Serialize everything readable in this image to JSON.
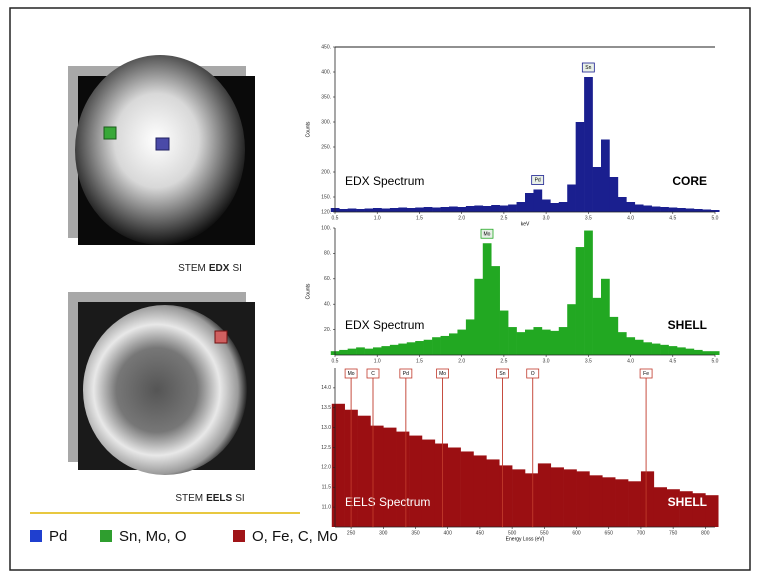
{
  "captions": [
    [
      "STEM",
      "EDX",
      "SI"
    ],
    [
      "STEM",
      "EELS",
      "SI"
    ]
  ],
  "legend": [
    {
      "label": "Pd",
      "color": "#1f3fcf"
    },
    {
      "label": "Sn, Mo, O",
      "color": "#2f9e2f"
    },
    {
      "label": "O, Fe, C, Mo",
      "color": "#a01418"
    }
  ],
  "chart_data": [
    {
      "type": "area",
      "title": "EDX Spectrum",
      "region": "CORE",
      "label_color": "#000000",
      "y_label": "Counts",
      "x_label": "keV",
      "color": "#1a1f8f",
      "marker_color": "#1a1f8f",
      "x": [
        0.5,
        0.6,
        0.7,
        0.8,
        0.9,
        1.0,
        1.1,
        1.2,
        1.3,
        1.4,
        1.5,
        1.6,
        1.7,
        1.8,
        1.9,
        2.0,
        2.1,
        2.2,
        2.3,
        2.4,
        2.5,
        2.6,
        2.7,
        2.8,
        2.9,
        3.0,
        3.1,
        3.2,
        3.3,
        3.4,
        3.5,
        3.6,
        3.7,
        3.8,
        3.9,
        4.0,
        4.1,
        4.2,
        4.3,
        4.4,
        4.5,
        4.6,
        4.7,
        4.8,
        4.9,
        5.0
      ],
      "values": [
        128,
        126,
        127,
        126,
        127,
        128,
        127,
        128,
        129,
        128,
        129,
        130,
        129,
        130,
        131,
        130,
        132,
        133,
        132,
        134,
        133,
        135,
        140,
        158,
        165,
        145,
        138,
        140,
        175,
        300,
        390,
        210,
        265,
        190,
        150,
        140,
        135,
        133,
        131,
        130,
        129,
        128,
        127,
        126,
        125,
        124
      ],
      "peaks": [
        {
          "label": "Sn",
          "x": 3.5
        },
        {
          "label": "Pd",
          "x": 2.9
        }
      ],
      "xlim": [
        0.5,
        5.0
      ],
      "xticks": [
        0.5,
        {
          "value": 1,
          "label": "1.0"
        },
        1.5,
        {
          "value": 2,
          "label": "2.0"
        },
        2.5,
        {
          "value": 3,
          "label": "3.0"
        },
        3.5,
        {
          "value": 4,
          "label": "4.0"
        },
        4.5,
        {
          "value": 5,
          "label": "5.0"
        }
      ],
      "ylim": [
        120,
        450
      ],
      "yticks": [
        {
          "value": 120,
          "label": "120."
        },
        {
          "value": 150,
          "label": "150."
        },
        {
          "value": 200,
          "label": "200."
        },
        {
          "value": 250,
          "label": "250."
        },
        {
          "value": 300,
          "label": "300."
        },
        {
          "value": 350,
          "label": "350."
        },
        {
          "value": 400,
          "label": "400."
        },
        {
          "value": 450,
          "label": "450."
        }
      ]
    },
    {
      "type": "area",
      "title": "EDX Spectrum",
      "region": "SHELL",
      "label_color": "#000000",
      "y_label": "Counts",
      "color": "#22a822",
      "marker_color": "#22a822",
      "x": [
        0.5,
        0.6,
        0.7,
        0.8,
        0.9,
        1.0,
        1.1,
        1.2,
        1.3,
        1.4,
        1.5,
        1.6,
        1.7,
        1.8,
        1.9,
        2.0,
        2.1,
        2.2,
        2.3,
        2.4,
        2.5,
        2.6,
        2.7,
        2.8,
        2.9,
        3.0,
        3.1,
        3.2,
        3.3,
        3.4,
        3.5,
        3.6,
        3.7,
        3.8,
        3.9,
        4.0,
        4.1,
        4.2,
        4.3,
        4.4,
        4.5,
        4.6,
        4.7,
        4.8,
        4.9,
        5.0
      ],
      "values": [
        3,
        4,
        5,
        6,
        5,
        6,
        7,
        8,
        9,
        10,
        11,
        12,
        14,
        15,
        17,
        20,
        28,
        60,
        88,
        70,
        35,
        22,
        18,
        20,
        22,
        20,
        19,
        22,
        40,
        85,
        98,
        45,
        60,
        30,
        18,
        14,
        12,
        10,
        9,
        8,
        7,
        6,
        5,
        4,
        3,
        3
      ],
      "peaks": [
        {
          "label": "Mo",
          "x": 2.3
        }
      ],
      "xlim": [
        0.5,
        5.0
      ],
      "xticks": [
        0.5,
        {
          "value": 1,
          "label": "1.0"
        },
        1.5,
        {
          "value": 2,
          "label": "2.0"
        },
        2.5,
        {
          "value": 3,
          "label": "3.0"
        },
        3.5,
        {
          "value": 4,
          "label": "4.0"
        },
        4.5,
        {
          "value": 5,
          "label": "5.0"
        }
      ],
      "ylim": [
        0,
        100
      ],
      "yticks": [
        {
          "value": 20,
          "label": "20."
        },
        {
          "value": 40,
          "label": "40."
        },
        {
          "value": 60,
          "label": "60."
        },
        {
          "value": 80,
          "label": "80."
        },
        {
          "value": 100,
          "label": "100."
        }
      ]
    },
    {
      "type": "area",
      "title": "EELS Spectrum",
      "region": "SHELL",
      "label_color": "#ffffff",
      "x_label": "Energy Loss (eV)",
      "color": "#9b0f12",
      "marker_color": "#c0392b",
      "x": [
        230,
        250,
        270,
        290,
        310,
        330,
        350,
        370,
        390,
        410,
        430,
        450,
        470,
        490,
        510,
        530,
        550,
        570,
        590,
        610,
        630,
        650,
        670,
        690,
        710,
        730,
        750,
        770,
        790,
        810
      ],
      "values": [
        13.6,
        13.45,
        13.3,
        13.05,
        13.0,
        12.9,
        12.8,
        12.7,
        12.6,
        12.5,
        12.4,
        12.3,
        12.2,
        12.05,
        11.95,
        11.85,
        12.1,
        12.0,
        11.95,
        11.9,
        11.8,
        11.75,
        11.7,
        11.65,
        11.9,
        11.5,
        11.45,
        11.4,
        11.35,
        11.3
      ],
      "edges": [
        {
          "label": "Mo",
          "x": 250
        },
        {
          "label": "C",
          "x": 284
        },
        {
          "label": "Pd",
          "x": 335
        },
        {
          "label": "Mo",
          "x": 392
        },
        {
          "label": "Sn",
          "x": 485
        },
        {
          "label": "O",
          "x": 532
        },
        {
          "label": "Fe",
          "x": 708
        }
      ],
      "xlim": [
        225,
        815
      ],
      "xticks": [
        250,
        300,
        350,
        400,
        450,
        500,
        550,
        600,
        650,
        700,
        750,
        800
      ],
      "ylim": [
        10.5,
        14.5
      ],
      "yticks": [
        {
          "value": 11,
          "label": "11.0"
        },
        11.5,
        {
          "value": 12,
          "label": "12.0"
        },
        12.5,
        {
          "value": 13,
          "label": "13.0"
        },
        13.5,
        {
          "value": 14,
          "label": "14.0"
        }
      ]
    }
  ]
}
